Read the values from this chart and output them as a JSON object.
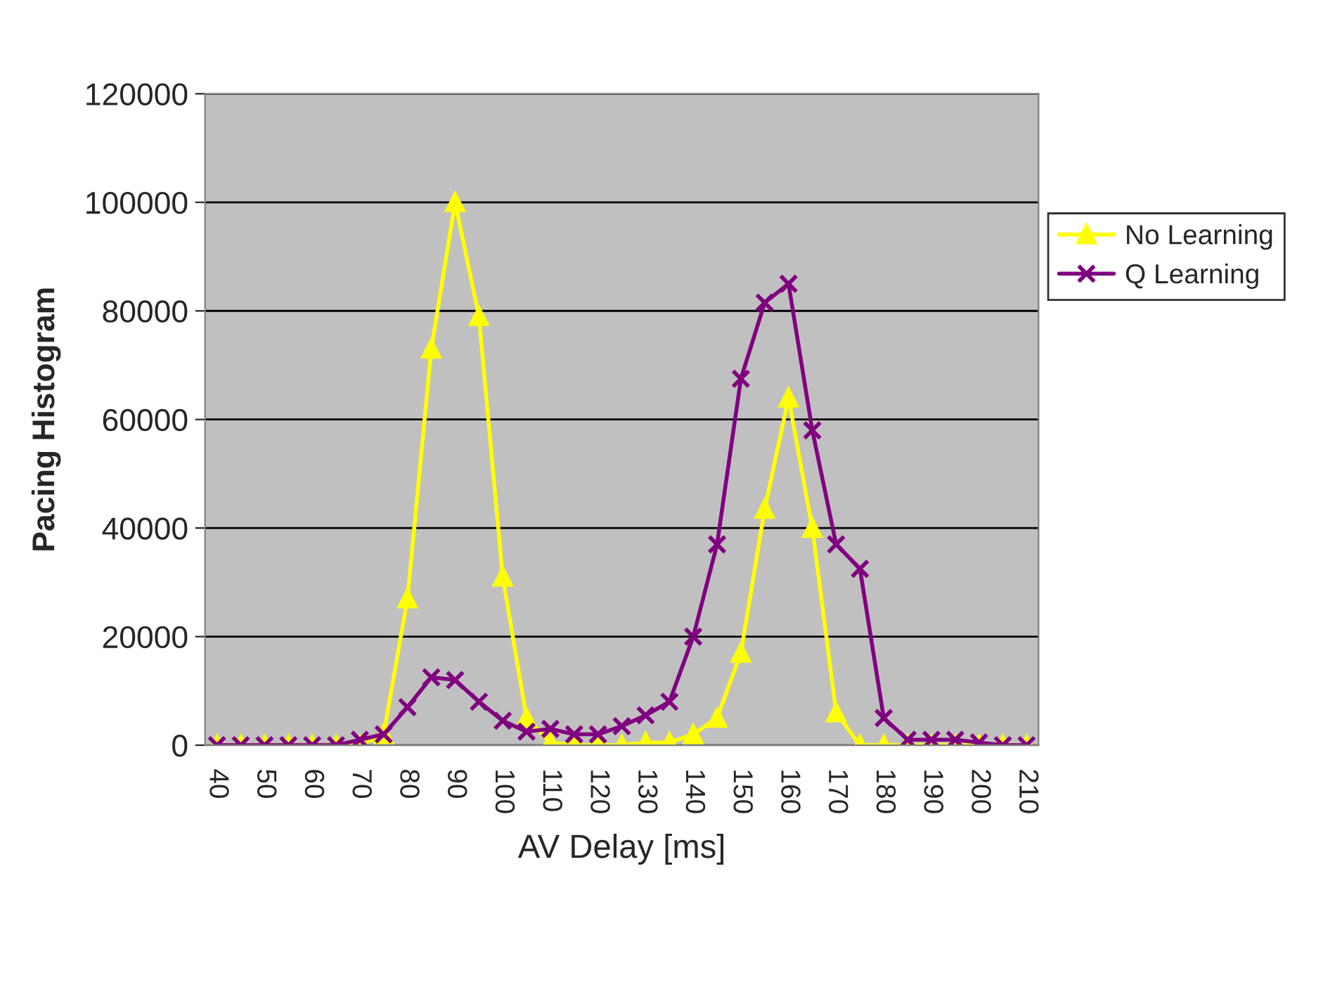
{
  "chart_data": {
    "type": "line",
    "xlabel": "AV Delay [ms]",
    "ylabel": "Pacing Histogram",
    "categories": [
      "40",
      null,
      "50",
      null,
      "60",
      null,
      "70",
      null,
      "80",
      null,
      "90",
      null,
      "100",
      null,
      "110",
      null,
      "120",
      null,
      "130",
      null,
      "140",
      null,
      "150",
      null,
      "160",
      null,
      "170",
      null,
      "180",
      null,
      "190",
      null,
      "200",
      null,
      "210"
    ],
    "series": [
      {
        "name": "No Learning",
        "color": "#ffff00",
        "marker": "triangle",
        "values": [
          0,
          0,
          0,
          0,
          0,
          0,
          0,
          2000,
          27000,
          73000,
          100000,
          79000,
          31000,
          5000,
          500,
          0,
          0,
          0,
          500,
          500,
          2000,
          5000,
          17000,
          43500,
          64000,
          40000,
          6000,
          0,
          0,
          0,
          0,
          0,
          0,
          0,
          0
        ]
      },
      {
        "name": "Q Learning",
        "color": "#800080",
        "marker": "cross",
        "values": [
          0,
          0,
          0,
          0,
          0,
          0,
          1000,
          2000,
          7000,
          12500,
          12000,
          8000,
          4500,
          2500,
          3000,
          2000,
          2000,
          3500,
          5500,
          8000,
          20000,
          37000,
          67500,
          81500,
          85000,
          58000,
          37000,
          32500,
          5000,
          1000,
          1000,
          1000,
          500,
          0,
          0
        ]
      }
    ],
    "ylim": [
      0,
      120000
    ],
    "yticks": [
      0,
      20000,
      40000,
      60000,
      80000,
      100000,
      120000
    ],
    "grid": "y",
    "legend": "right",
    "line_style": "solid"
  }
}
